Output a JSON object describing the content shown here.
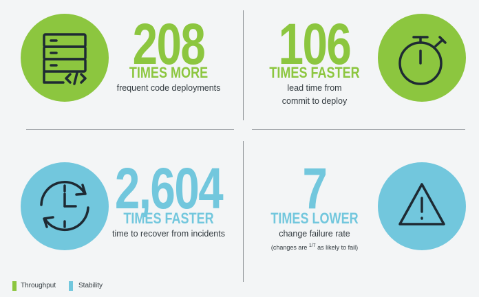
{
  "colors": {
    "throughput": "#8cc63f",
    "stability": "#72c7dd",
    "icon_stroke": "#1e2a33"
  },
  "metrics": [
    {
      "number": "208",
      "label": "TIMES MORE",
      "description": [
        "frequent code deployments"
      ],
      "icon": "server-code-icon",
      "category": "throughput"
    },
    {
      "number": "106",
      "label": "TIMES FASTER",
      "description": [
        "lead time from",
        "commit to deploy"
      ],
      "icon": "stopwatch-icon",
      "category": "throughput"
    },
    {
      "number": "2,604",
      "label": "TIMES FASTER",
      "description": [
        "time to recover from incidents"
      ],
      "icon": "clock-recover-icon",
      "category": "stability"
    },
    {
      "number": "7",
      "label": "TIMES LOWER",
      "description": [
        "change failure rate"
      ],
      "note_prefix": "(changes are ",
      "note_fraction": "1/7",
      "note_suffix": " as likely to fail)",
      "icon": "warning-icon",
      "category": "stability"
    }
  ],
  "legend": [
    {
      "label": "Throughput",
      "color": "#8cc63f"
    },
    {
      "label": "Stability",
      "color": "#72c7dd"
    }
  ]
}
